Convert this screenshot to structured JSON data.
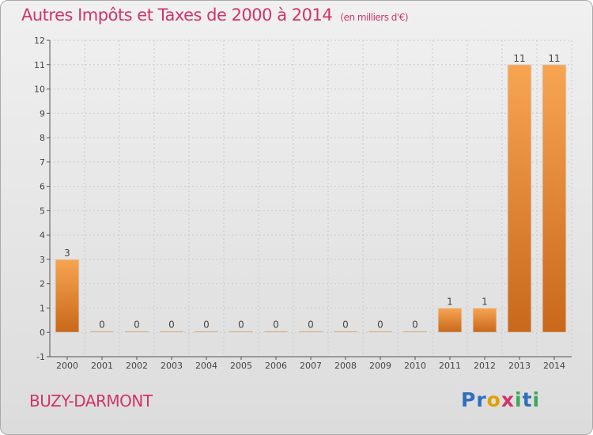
{
  "title": "Autres Impôts et Taxes de 2000 à 2014",
  "subtitle": "(en milliers d'€)",
  "commune": "BUZY-DARMONT",
  "brand": [
    "P",
    "r",
    "o",
    "x",
    "i",
    "t",
    "i"
  ],
  "brand_colors": [
    "#2f6fbf",
    "#2f6fbf",
    "#e0a100",
    "#d0346a",
    "#3aa85a",
    "#2f6fbf",
    "#3aa85a"
  ],
  "colors": {
    "bar_top": "#f7a552",
    "bar_bottom": "#c8681a",
    "title": "#d0346a",
    "grid": "#cccccc"
  },
  "chart_data": {
    "type": "bar",
    "categories": [
      "2000",
      "2001",
      "2002",
      "2003",
      "2004",
      "2005",
      "2006",
      "2007",
      "2008",
      "2009",
      "2010",
      "2011",
      "2012",
      "2013",
      "2014"
    ],
    "values": [
      3,
      0,
      0,
      0,
      0,
      0,
      0,
      0,
      0,
      0,
      0,
      1,
      1,
      11,
      11
    ],
    "data_labels": [
      "3",
      "0",
      "0",
      "0",
      "0",
      "0",
      "0",
      "0",
      "0",
      "0",
      "0",
      "1",
      "1",
      "11",
      "11"
    ],
    "y_ticks": [
      -1,
      0,
      1,
      2,
      3,
      4,
      5,
      6,
      7,
      8,
      9,
      10,
      11,
      12
    ],
    "ylim": [
      -1,
      12
    ],
    "grid": true
  }
}
